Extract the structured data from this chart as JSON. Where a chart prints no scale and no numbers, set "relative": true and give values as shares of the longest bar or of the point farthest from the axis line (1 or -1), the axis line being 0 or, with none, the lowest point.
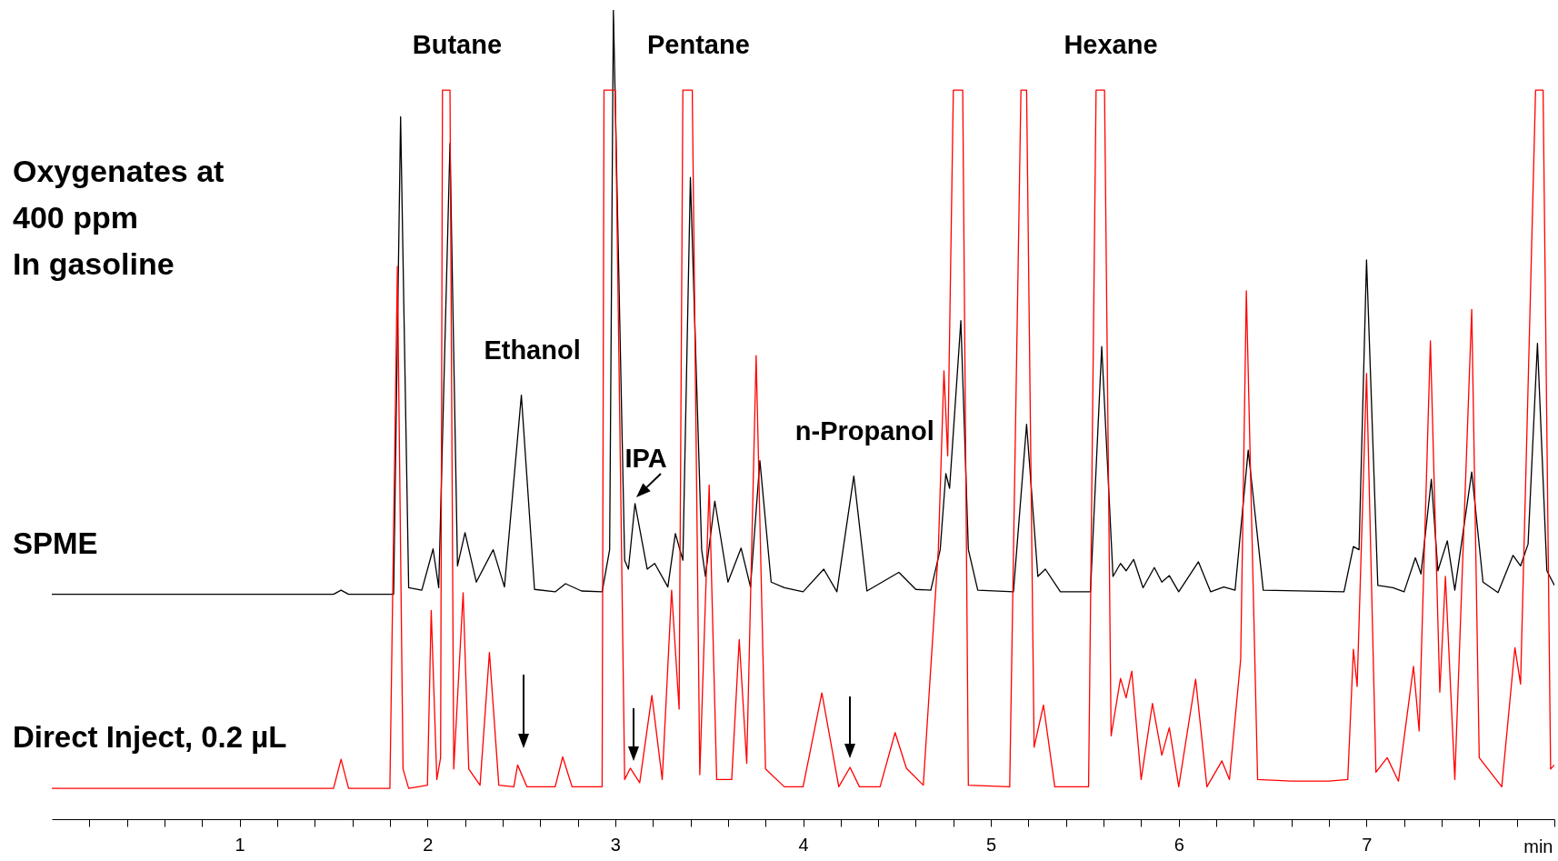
{
  "chart_data": {
    "type": "line",
    "title": "Oxygenates at\n400 ppm\nIn gasoline",
    "xlabel": "min",
    "relative": true,
    "grid": false,
    "legend": false,
    "xlim": [
      0,
      8
    ],
    "xticks": [
      {
        "value": 0.2,
        "label": null
      },
      {
        "value": 0.4,
        "label": null
      },
      {
        "value": 0.6,
        "label": null
      },
      {
        "value": 0.8,
        "label": null
      },
      1,
      {
        "value": 1.2,
        "label": null
      },
      {
        "value": 1.4,
        "label": null
      },
      {
        "value": 1.6,
        "label": null
      },
      {
        "value": 1.8,
        "label": null
      },
      2,
      {
        "value": 2.2,
        "label": null
      },
      {
        "value": 2.4,
        "label": null
      },
      {
        "value": 2.6,
        "label": null
      },
      {
        "value": 2.8,
        "label": null
      },
      3,
      {
        "value": 3.2,
        "label": null
      },
      {
        "value": 3.4,
        "label": null
      },
      {
        "value": 3.6,
        "label": null
      },
      {
        "value": 3.8,
        "label": null
      },
      4,
      {
        "value": 4.2,
        "label": null
      },
      {
        "value": 4.4,
        "label": null
      },
      {
        "value": 4.6,
        "label": null
      },
      {
        "value": 4.8,
        "label": null
      },
      5,
      {
        "value": 5.2,
        "label": null
      },
      {
        "value": 5.4,
        "label": null
      },
      {
        "value": 5.6,
        "label": null
      },
      {
        "value": 5.8,
        "label": null
      },
      6,
      {
        "value": 6.2,
        "label": null
      },
      {
        "value": 6.4,
        "label": null
      },
      {
        "value": 6.6,
        "label": null
      },
      {
        "value": 6.8,
        "label": null
      },
      7,
      {
        "value": 7.2,
        "label": null
      },
      {
        "value": 7.4,
        "label": null
      },
      {
        "value": 7.6,
        "label": null
      },
      {
        "value": 7.8,
        "label": null
      },
      {
        "value": 8,
        "label": null
      }
    ],
    "series": [
      {
        "name": "SPME",
        "color": "#000000",
        "x": [
          0,
          1.5,
          1.54,
          1.58,
          1.82,
          1.857,
          1.9,
          1.97,
          2.03,
          2.06,
          2.12,
          2.16,
          2.2,
          2.26,
          2.35,
          2.41,
          2.5,
          2.57,
          2.68,
          2.735,
          2.82,
          2.93,
          2.97,
          2.99,
          3.05,
          3.07,
          3.105,
          3.17,
          3.21,
          3.28,
          3.32,
          3.36,
          3.4,
          3.46,
          3.48,
          3.53,
          3.6,
          3.67,
          3.72,
          3.77,
          3.83,
          3.9,
          4.0,
          4.11,
          4.18,
          4.27,
          4.34,
          4.51,
          4.6,
          4.68,
          4.73,
          4.76,
          4.78,
          4.84,
          4.88,
          4.93,
          5.12,
          5.19,
          5.25,
          5.29,
          5.37,
          5.53,
          5.59,
          5.65,
          5.69,
          5.72,
          5.76,
          5.81,
          5.87,
          5.91,
          5.95,
          6.0,
          6.105,
          6.17,
          6.24,
          6.3,
          6.37,
          6.45,
          6.88,
          6.93,
          6.96,
          7.0,
          7.06,
          7.14,
          7.2,
          7.26,
          7.29,
          7.345,
          7.38,
          7.43,
          7.47,
          7.56,
          7.62,
          7.7,
          7.78,
          7.82,
          7.86,
          7.91,
          7.96,
          8.0
        ],
        "values": [
          0.278,
          0.278,
          0.283,
          0.278,
          0.278,
          0.868,
          0.286,
          0.283,
          0.334,
          0.286,
          0.835,
          0.313,
          0.354,
          0.293,
          0.333,
          0.287,
          0.524,
          0.284,
          0.281,
          0.291,
          0.282,
          0.281,
          0.333,
          1.0,
          0.32,
          0.309,
          0.39,
          0.309,
          0.316,
          0.287,
          0.353,
          0.32,
          0.793,
          0.333,
          0.3,
          0.393,
          0.293,
          0.335,
          0.287,
          0.443,
          0.293,
          0.286,
          0.281,
          0.309,
          0.281,
          0.424,
          0.282,
          0.305,
          0.284,
          0.283,
          0.333,
          0.427,
          0.409,
          0.616,
          0.333,
          0.283,
          0.281,
          0.488,
          0.3,
          0.309,
          0.281,
          0.281,
          0.584,
          0.3,
          0.316,
          0.307,
          0.321,
          0.286,
          0.311,
          0.293,
          0.301,
          0.281,
          0.318,
          0.281,
          0.287,
          0.283,
          0.456,
          0.283,
          0.281,
          0.337,
          0.333,
          0.691,
          0.289,
          0.286,
          0.281,
          0.323,
          0.303,
          0.42,
          0.307,
          0.344,
          0.283,
          0.429,
          0.293,
          0.28,
          0.326,
          0.313,
          0.34,
          0.588,
          0.307,
          0.289
        ]
      },
      {
        "name": "Direct Inject, 0.2 µL",
        "color": "#ff0000",
        "x": [
          0,
          1.5,
          1.54,
          1.58,
          1.8,
          1.84,
          1.87,
          1.9,
          2.0,
          2.02,
          2.05,
          2.07,
          2.08,
          2.12,
          2.14,
          2.19,
          2.22,
          2.28,
          2.33,
          2.38,
          2.46,
          2.48,
          2.53,
          2.68,
          2.72,
          2.77,
          2.93,
          2.94,
          3.0,
          3.05,
          3.08,
          3.13,
          3.195,
          3.25,
          3.3,
          3.34,
          3.36,
          3.41,
          3.45,
          3.5,
          3.54,
          3.62,
          3.66,
          3.7,
          3.75,
          3.8,
          3.9,
          4.0,
          4.1,
          4.19,
          4.25,
          4.3,
          4.41,
          4.49,
          4.55,
          4.64,
          4.72,
          4.75,
          4.77,
          4.8,
          4.85,
          4.88,
          5.1,
          5.16,
          5.19,
          5.23,
          5.28,
          5.34,
          5.52,
          5.56,
          5.605,
          5.64,
          5.69,
          5.72,
          5.75,
          5.8,
          5.86,
          5.91,
          5.95,
          6.0,
          6.09,
          6.15,
          6.23,
          6.27,
          6.33,
          6.36,
          6.42,
          6.6,
          6.8,
          6.9,
          6.93,
          6.95,
          7.0,
          7.05,
          7.11,
          7.17,
          7.25,
          7.28,
          7.34,
          7.39,
          7.42,
          7.47,
          7.56,
          7.6,
          7.72,
          7.79,
          7.82,
          7.9,
          7.94,
          7.98,
          8.0
        ],
        "values": [
          0.038,
          0.038,
          0.074,
          0.038,
          0.038,
          0.683,
          0.062,
          0.038,
          0.042,
          0.258,
          0.049,
          0.076,
          0.901,
          0.901,
          0.062,
          0.28,
          0.062,
          0.042,
          0.206,
          0.042,
          0.04,
          0.067,
          0.04,
          0.04,
          0.077,
          0.04,
          0.04,
          0.901,
          0.901,
          0.049,
          0.063,
          0.045,
          0.153,
          0.049,
          0.283,
          0.136,
          0.901,
          0.901,
          0.055,
          0.413,
          0.049,
          0.049,
          0.222,
          0.069,
          0.573,
          0.062,
          0.04,
          0.04,
          0.156,
          0.04,
          0.064,
          0.04,
          0.04,
          0.107,
          0.063,
          0.042,
          0.333,
          0.554,
          0.449,
          0.901,
          0.901,
          0.042,
          0.04,
          0.901,
          0.901,
          0.089,
          0.141,
          0.04,
          0.04,
          0.901,
          0.901,
          0.103,
          0.174,
          0.15,
          0.183,
          0.049,
          0.143,
          0.079,
          0.113,
          0.04,
          0.173,
          0.04,
          0.072,
          0.049,
          0.198,
          0.653,
          0.049,
          0.047,
          0.047,
          0.049,
          0.21,
          0.164,
          0.551,
          0.058,
          0.076,
          0.047,
          0.189,
          0.109,
          0.591,
          0.157,
          0.3,
          0.049,
          0.63,
          0.076,
          0.04,
          0.212,
          0.167,
          0.901,
          0.901,
          0.062,
          0.067
        ]
      }
    ],
    "annotations": [
      {
        "text": "Butane",
        "x": 2.1,
        "y": 0.901
      },
      {
        "text": "Pentane",
        "x": 3.385,
        "y": 0.901
      },
      {
        "text": "Hexane",
        "x": 5.58,
        "y": 0.901
      },
      {
        "text": "Ethanol",
        "x": 2.5,
        "y": 0.524
      },
      {
        "text": "IPA",
        "x": 3.105,
        "y": 0.39
      },
      {
        "text": "n-Propanol",
        "x": 4.27,
        "y": 0.424
      }
    ]
  }
}
